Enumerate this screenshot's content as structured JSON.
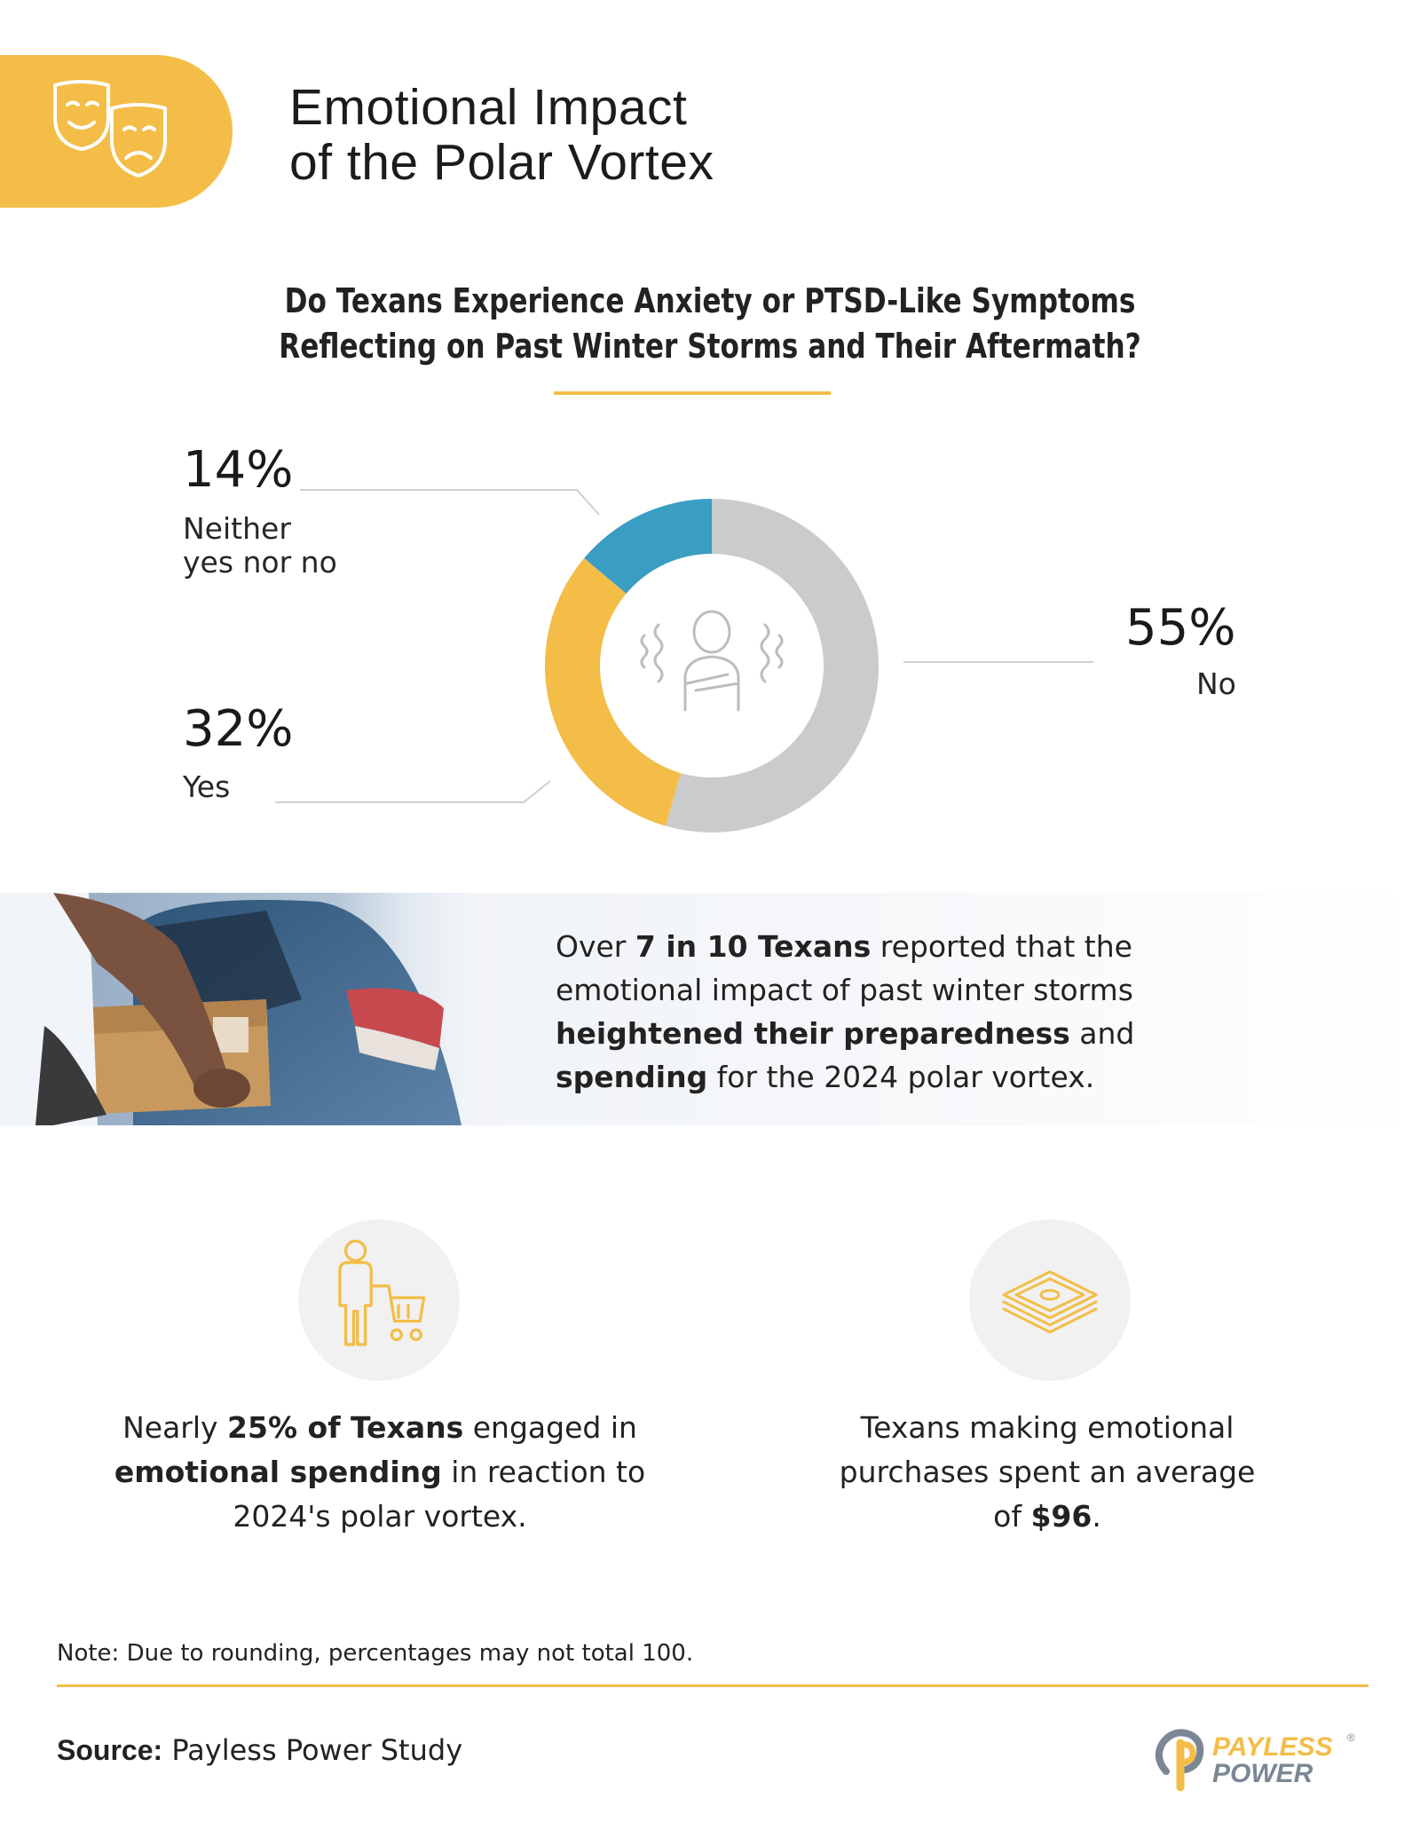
{
  "header": {
    "title": "Emotional Impact\nof the Polar Vortex",
    "icon": "theater-masks-icon",
    "accent_color": "#F3BD48"
  },
  "question": "Do Texans Experience Anxiety or PTSD-Like Symptoms\nReflecting on Past Winter Storms and Their Aftermath?",
  "chart_data": {
    "type": "pie",
    "variant": "donut",
    "title": "Do Texans Experience Anxiety or PTSD-Like Symptoms Reflecting on Past Winter Storms and Their Aftermath?",
    "categories": [
      "Neither yes nor no",
      "No",
      "Yes"
    ],
    "values": [
      14,
      55,
      32
    ],
    "unit": "%",
    "colors": [
      "#3A9EC2",
      "#CACBCD",
      "#F3BD48"
    ],
    "center_icon": "shivering-person-icon"
  },
  "labels": {
    "neither": {
      "pct": "14%",
      "text": "Neither\nyes nor no"
    },
    "no": {
      "pct": "55%",
      "text": "No"
    },
    "yes": {
      "pct": "32%",
      "text": "Yes"
    }
  },
  "banner": {
    "pre": "Over ",
    "bold1": "7 in 10 Texans",
    "mid1": " reported that the emotional impact of past winter storms ",
    "bold2": "heightened their preparedness",
    "mid2": " and ",
    "bold3": "spending",
    "post": " for the 2024 polar vortex."
  },
  "stats": [
    {
      "icon": "shopping-cart-person-icon",
      "pre": "Nearly ",
      "bold1": "25% of Texans",
      "mid": " engaged in ",
      "bold2": "emotional spending",
      "post": " in reaction to 2024's polar vortex."
    },
    {
      "icon": "cash-stack-icon",
      "pre": "Texans making emotional purchases spent an average of ",
      "bold1": "$96",
      "post": "."
    }
  ],
  "footer": {
    "note": "Note: Due to rounding, percentages may not total 100.",
    "source_label": "Source:",
    "source_text": " Payless Power Study",
    "logo_line1": "PAYLESS",
    "logo_line2": "POWER",
    "logo_mark": "®"
  }
}
